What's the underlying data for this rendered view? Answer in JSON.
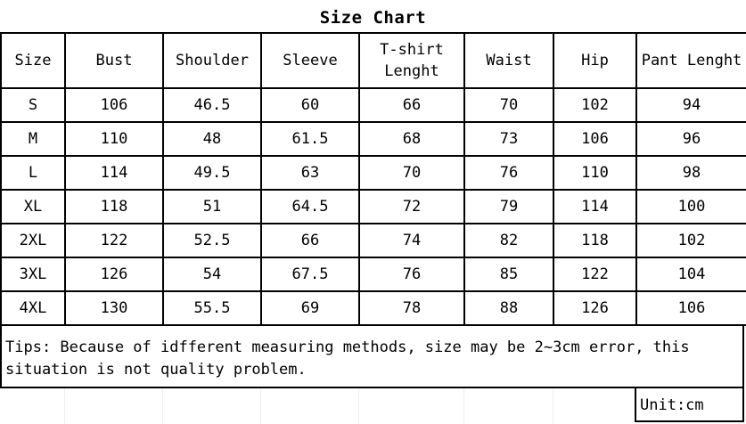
{
  "title": "Size Chart",
  "table": {
    "headers": [
      "Size",
      "Bust",
      "Shoulder",
      "Sleeve",
      "T-shirt Lenght",
      "Waist",
      "Hip",
      "Pant Lenght"
    ],
    "rows": [
      [
        "S",
        "106",
        "46.5",
        "60",
        "66",
        "70",
        "102",
        "94"
      ],
      [
        "M",
        "110",
        "48",
        "61.5",
        "68",
        "73",
        "106",
        "96"
      ],
      [
        "L",
        "114",
        "49.5",
        "63",
        "70",
        "76",
        "110",
        "98"
      ],
      [
        "XL",
        "118",
        "51",
        "64.5",
        "72",
        "79",
        "114",
        "100"
      ],
      [
        "2XL",
        "122",
        "52.5",
        "66",
        "74",
        "82",
        "118",
        "102"
      ],
      [
        "3XL",
        "126",
        "54",
        "67.5",
        "76",
        "85",
        "122",
        "104"
      ],
      [
        "4XL",
        "130",
        "55.5",
        "69",
        "78",
        "88",
        "126",
        "106"
      ]
    ]
  },
  "tips": "Tips: Because of idfferent measuring methods, size may be 2~3cm error, this situation is not quality problem.",
  "unit": "Unit:cm"
}
